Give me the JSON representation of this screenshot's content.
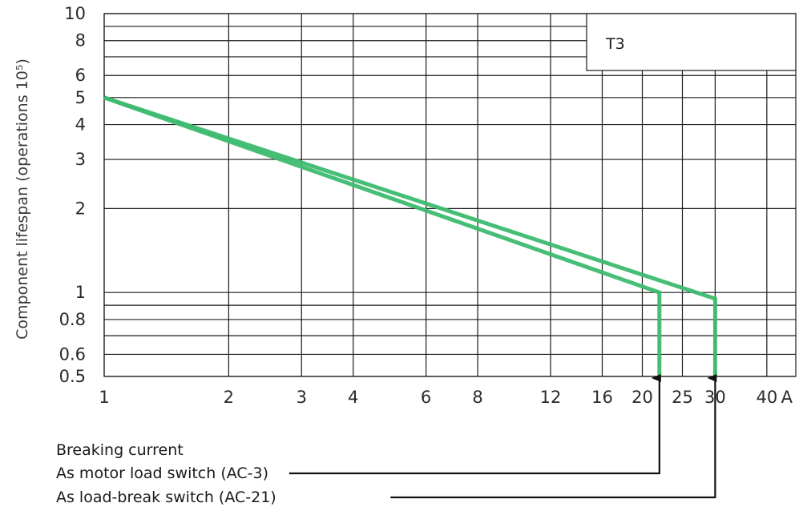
{
  "chart_data": {
    "type": "line",
    "title": "",
    "label_box": "T3",
    "ylabel": "Component lifespan (operations 10⁵)",
    "xlabel": "Breaking current",
    "x_scale": "log",
    "y_scale": "log",
    "xlim": [
      1,
      40
    ],
    "ylim": [
      0.5,
      10
    ],
    "x_ticks": [
      {
        "value": 1,
        "label": "1"
      },
      {
        "value": 2,
        "label": "2"
      },
      {
        "value": 3,
        "label": "3"
      },
      {
        "value": 4,
        "label": "4"
      },
      {
        "value": 6,
        "label": "6"
      },
      {
        "value": 8,
        "label": "8"
      },
      {
        "value": 12,
        "label": "12"
      },
      {
        "value": 16,
        "label": "16"
      },
      {
        "value": 20,
        "label": "20"
      },
      {
        "value": 25,
        "label": "25"
      },
      {
        "value": 30,
        "label": "30"
      },
      {
        "value": 40,
        "label": "40"
      }
    ],
    "x_unit": "A",
    "x_grid_lines": [
      1,
      2,
      3,
      4,
      6,
      8,
      12,
      16,
      20,
      25,
      30,
      40
    ],
    "y_ticks": [
      {
        "value": 0.5,
        "label": "0.5"
      },
      {
        "value": 0.6,
        "label": "0.6"
      },
      {
        "value": 0.8,
        "label": "0.8"
      },
      {
        "value": 1,
        "label": "1"
      },
      {
        "value": 2,
        "label": "2"
      },
      {
        "value": 3,
        "label": "3"
      },
      {
        "value": 4,
        "label": "4"
      },
      {
        "value": 5,
        "label": "5"
      },
      {
        "value": 6,
        "label": "6"
      },
      {
        "value": 8,
        "label": "8"
      },
      {
        "value": 10,
        "label": "10"
      }
    ],
    "y_grid_lines": [
      0.5,
      0.6,
      0.7,
      0.8,
      0.9,
      1,
      2,
      3,
      4,
      5,
      6,
      7,
      8,
      9,
      10
    ],
    "series_color": "#3dba6f",
    "series": [
      {
        "name": "As motor load switch (AC-3)",
        "points": [
          [
            1,
            5
          ],
          [
            22,
            1
          ],
          [
            22,
            0.5
          ]
        ],
        "arrow_at_x": 22
      },
      {
        "name": "As load-break switch (AC-21)",
        "points": [
          [
            1,
            5
          ],
          [
            30,
            0.95
          ],
          [
            30,
            0.5
          ]
        ],
        "arrow_at_x": 30
      }
    ],
    "legend_placement": "bottom-left",
    "grid": true
  }
}
